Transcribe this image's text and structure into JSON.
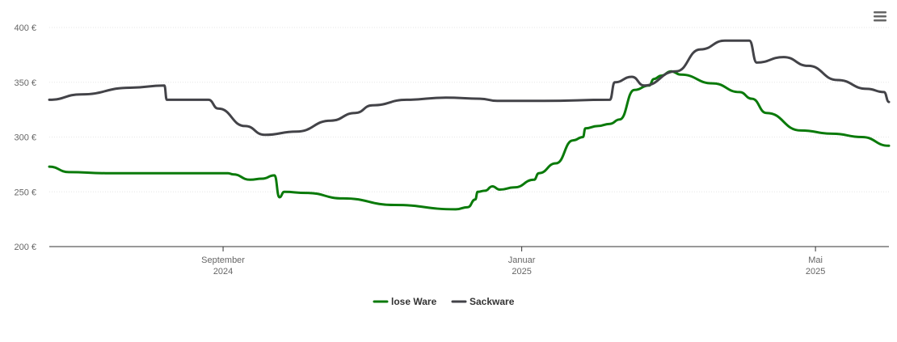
{
  "chart_data": {
    "type": "line",
    "ylim": [
      200,
      400
    ],
    "y_ticks": [
      {
        "value": 200,
        "label": "200 €"
      },
      {
        "value": 250,
        "label": "250 €"
      },
      {
        "value": 300,
        "label": "300 €"
      },
      {
        "value": 350,
        "label": "350 €"
      },
      {
        "value": 400,
        "label": "400 €"
      }
    ],
    "x_range": [
      "2024-06-22",
      "2025-05-31"
    ],
    "x_ticks": [
      {
        "date": "2024-09-01",
        "month": "September",
        "year": "2024"
      },
      {
        "date": "2025-01-01",
        "month": "Januar",
        "year": "2025"
      },
      {
        "date": "2025-05-01",
        "month": "Mai",
        "year": "2025"
      }
    ],
    "grid": true,
    "legend_position": "bottom-center",
    "series": [
      {
        "name": "lose Ware",
        "color": "#0a7a0a",
        "points": [
          [
            "2024-06-22",
            273
          ],
          [
            "2024-06-30",
            268
          ],
          [
            "2024-07-15",
            267
          ],
          [
            "2024-08-15",
            267
          ],
          [
            "2024-09-03",
            267
          ],
          [
            "2024-09-05",
            266
          ],
          [
            "2024-09-12",
            261
          ],
          [
            "2024-09-17",
            262
          ],
          [
            "2024-09-22",
            265
          ],
          [
            "2024-09-24",
            245
          ],
          [
            "2024-09-26",
            250
          ],
          [
            "2024-10-05",
            249
          ],
          [
            "2024-10-20",
            244
          ],
          [
            "2024-11-10",
            238
          ],
          [
            "2024-12-05",
            234
          ],
          [
            "2024-12-10",
            236
          ],
          [
            "2024-12-13",
            243
          ],
          [
            "2024-12-14",
            250
          ],
          [
            "2024-12-17",
            251
          ],
          [
            "2024-12-20",
            255
          ],
          [
            "2024-12-23",
            252
          ],
          [
            "2024-12-29",
            254
          ],
          [
            "2025-01-06",
            261
          ],
          [
            "2025-01-08",
            267
          ],
          [
            "2025-01-15",
            276
          ],
          [
            "2025-01-22",
            297
          ],
          [
            "2025-01-26",
            300
          ],
          [
            "2025-01-27",
            308
          ],
          [
            "2025-02-01",
            310
          ],
          [
            "2025-02-06",
            312
          ],
          [
            "2025-02-10",
            316
          ],
          [
            "2025-02-16",
            343
          ],
          [
            "2025-02-22",
            347
          ],
          [
            "2025-02-24",
            353
          ],
          [
            "2025-02-27",
            356
          ],
          [
            "2025-03-03",
            360
          ],
          [
            "2025-03-07",
            357
          ],
          [
            "2025-03-20",
            349
          ],
          [
            "2025-03-31",
            341
          ],
          [
            "2025-04-05",
            335
          ],
          [
            "2025-04-11",
            322
          ],
          [
            "2025-04-25",
            306
          ],
          [
            "2025-05-08",
            303
          ],
          [
            "2025-05-20",
            300
          ],
          [
            "2025-05-31",
            292
          ]
        ]
      },
      {
        "name": "Sackware",
        "color": "#434348",
        "points": [
          [
            "2024-06-22",
            334
          ],
          [
            "2024-07-05",
            339
          ],
          [
            "2024-07-25",
            345
          ],
          [
            "2024-08-08",
            347
          ],
          [
            "2024-08-09",
            334
          ],
          [
            "2024-08-26",
            334
          ],
          [
            "2024-08-30",
            326
          ],
          [
            "2024-09-10",
            310
          ],
          [
            "2024-09-18",
            302
          ],
          [
            "2024-10-01",
            305
          ],
          [
            "2024-10-15",
            315
          ],
          [
            "2024-10-25",
            322
          ],
          [
            "2024-11-01",
            329
          ],
          [
            "2024-11-15",
            334
          ],
          [
            "2024-12-01",
            336
          ],
          [
            "2024-12-15",
            335
          ],
          [
            "2024-12-22",
            333
          ],
          [
            "2025-01-10",
            333
          ],
          [
            "2025-02-06",
            334
          ],
          [
            "2025-02-08",
            350
          ],
          [
            "2025-02-15",
            355
          ],
          [
            "2025-02-20",
            347
          ],
          [
            "2025-03-05",
            360
          ],
          [
            "2025-03-15",
            380
          ],
          [
            "2025-03-25",
            388
          ],
          [
            "2025-04-04",
            388
          ],
          [
            "2025-04-07",
            368
          ],
          [
            "2025-04-18",
            373
          ],
          [
            "2025-04-28",
            365
          ],
          [
            "2025-05-10",
            352
          ],
          [
            "2025-05-22",
            344
          ],
          [
            "2025-05-29",
            341
          ],
          [
            "2025-05-31",
            332
          ]
        ]
      }
    ]
  },
  "menu": {
    "icon": "hamburger-menu-icon"
  }
}
